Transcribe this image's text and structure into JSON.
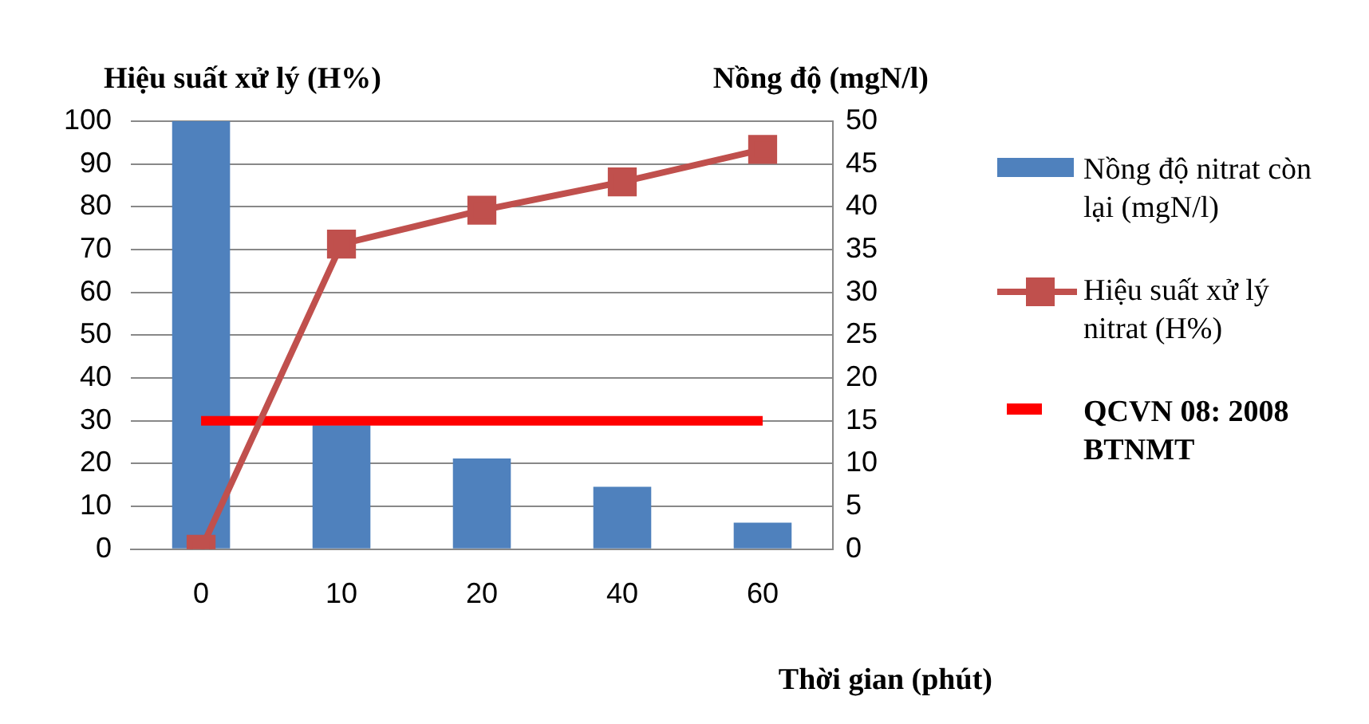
{
  "chart_data": {
    "type": "bar",
    "ylabel": "Hiệu suất xử lý (H%)",
    "y2label": "Nồng độ (mgN/l)",
    "xlabel": "Thời gian (phút)",
    "categories": [
      "0",
      "10",
      "20",
      "40",
      "60"
    ],
    "series": [
      {
        "name": "Nồng độ nitrat còn lại (mgN/l)",
        "axis": "y2",
        "color": "#4f81bd",
        "values": [
          50,
          14.5,
          10.6,
          7.3,
          3.1
        ]
      },
      {
        "name": "Hiệu suất xử lý nitrat (H%)",
        "type": "line",
        "color": "#c0504d",
        "marker": "square",
        "values": [
          0,
          71.3,
          79.2,
          85.8,
          93.4
        ]
      },
      {
        "name": "QCVN 08: 2008 BTNMT",
        "type": "line",
        "axis": "y2",
        "color": "#ff0000",
        "marker": "none",
        "values": [
          15,
          15,
          15,
          15,
          15
        ]
      }
    ],
    "ylim": [
      0,
      100
    ],
    "yticks": [
      0,
      10,
      20,
      30,
      40,
      50,
      60,
      70,
      80,
      90,
      100
    ],
    "y2lim": [
      0,
      50
    ],
    "y2ticks": [
      0,
      5,
      10,
      15,
      20,
      25,
      30,
      35,
      40,
      45,
      50
    ],
    "grid": "y",
    "legend": "right"
  }
}
